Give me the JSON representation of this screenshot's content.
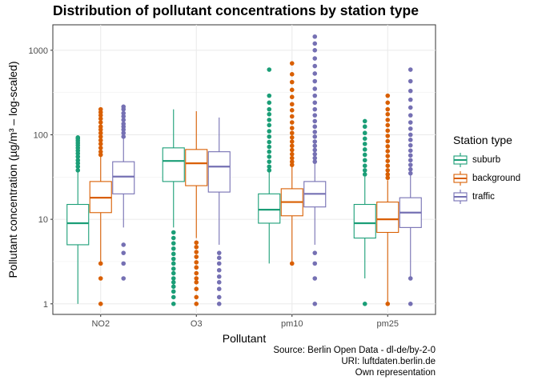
{
  "chart_data": {
    "type": "boxplot",
    "title": "Distribution of pollutant concentrations by station type",
    "xlabel": "Pollutant",
    "ylabel": "Pollutant concentration (µg/m³ – log-scaled)",
    "y_scale": "log10",
    "ylim": [
      0.75,
      2000
    ],
    "y_ticks": [
      1,
      10,
      100,
      1000
    ],
    "y_tick_labels": [
      "1",
      "10",
      "100",
      "1000"
    ],
    "grid": true,
    "legend_title": "Station type",
    "legend_position": "right",
    "categories": [
      "NO2",
      "O3",
      "pm10",
      "pm25"
    ],
    "series": [
      {
        "name": "suburb",
        "color": "#1b9e77",
        "boxes": [
          {
            "min": 1,
            "q1": 5,
            "median": 9,
            "q3": 15,
            "max": 37,
            "outliers_high": [
              38,
              42,
              46,
              50,
              55,
              60,
              65,
              70,
              75,
              80,
              85,
              90,
              93
            ],
            "outliers_low": []
          },
          {
            "min": 8,
            "q1": 28,
            "median": 49,
            "q3": 70,
            "max": 200,
            "outliers_high": [],
            "outliers_low": [
              1,
              1.2,
              1.4,
              1.6,
              1.8,
              2,
              2.3,
              2.6,
              3,
              3.4,
              3.9,
              4.5,
              5.2,
              6,
              7
            ]
          },
          {
            "min": 3,
            "q1": 9,
            "median": 13,
            "q3": 20,
            "max": 36,
            "outliers_high": [
              38,
              42,
              48,
              55,
              63,
              72,
              82,
              95,
              110,
              130,
              150,
              175,
              200,
              240,
              290,
              590
            ],
            "outliers_low": []
          },
          {
            "min": 2,
            "q1": 6,
            "median": 9,
            "q3": 15,
            "max": 32,
            "outliers_high": [
              34,
              38,
              43,
              50,
              58,
              67,
              78,
              90,
              105,
              125,
              145
            ],
            "outliers_low": [
              1
            ]
          }
        ]
      },
      {
        "name": "background",
        "color": "#d95f02",
        "boxes": [
          {
            "min": 3,
            "q1": 12,
            "median": 18,
            "q3": 28,
            "max": 56,
            "outliers_high": [
              58,
              63,
              70,
              78,
              86,
              95,
              105,
              115,
              125,
              140,
              155,
              170,
              185,
              200
            ],
            "outliers_low": [
              1,
              2,
              3
            ]
          },
          {
            "min": 6,
            "q1": 25,
            "median": 46,
            "q3": 67,
            "max": 190,
            "outliers_high": [],
            "outliers_low": [
              1,
              1.2,
              1.5,
              1.8,
              2,
              2.3,
              2.7,
              3.1,
              3.6,
              4.1,
              4.7,
              5.3
            ]
          },
          {
            "min": 3,
            "q1": 11,
            "median": 16,
            "q3": 23,
            "max": 42,
            "outliers_high": [
              44,
              48,
              53,
              59,
              66,
              74,
              83,
              93,
              105,
              120,
              140,
              165,
              195,
              230,
              280,
              340,
              420,
              520,
              700
            ],
            "outliers_low": [
              3
            ]
          },
          {
            "min": 1,
            "q1": 7,
            "median": 10,
            "q3": 16,
            "max": 29,
            "outliers_high": [
              31,
              34,
              38,
              43,
              49,
              56,
              64,
              73,
              84,
              97,
              112,
              130,
              150,
              175,
              200,
              240,
              290
            ],
            "outliers_low": [
              1
            ]
          }
        ]
      },
      {
        "name": "traffic",
        "color": "#7570b3",
        "boxes": [
          {
            "min": 8,
            "q1": 20,
            "median": 32,
            "q3": 48,
            "max": 90,
            "outliers_high": [
              95,
              105,
              115,
              125,
              135,
              150,
              165,
              180,
              200,
              215
            ],
            "outliers_low": [
              2,
              3,
              4,
              5
            ]
          },
          {
            "min": 5,
            "q1": 21,
            "median": 42,
            "q3": 63,
            "max": 160,
            "outliers_high": [],
            "outliers_low": [
              1,
              1.2,
              1.5,
              1.8,
              2.1,
              2.5,
              3,
              3.5,
              4
            ]
          },
          {
            "min": 5,
            "q1": 14,
            "median": 20,
            "q3": 28,
            "max": 46,
            "outliers_high": [
              48,
              53,
              59,
              66,
              74,
              83,
              95,
              108,
              125,
              145,
              170,
              200,
              240,
              290,
              350,
              430,
              530,
              650,
              800,
              1000,
              1200,
              1450
            ],
            "outliers_low": [
              1,
              2,
              3,
              4
            ]
          },
          {
            "min": 2,
            "q1": 8,
            "median": 12,
            "q3": 18,
            "max": 33,
            "outliers_high": [
              35,
              39,
              44,
              50,
              57,
              65,
              75,
              87,
              100,
              118,
              140,
              170,
              210,
              260,
              330,
              430,
              590
            ],
            "outliers_low": [
              1,
              2
            ]
          }
        ]
      }
    ],
    "caption": [
      "Source: Berlin Open Data - dl-de/by-2-0",
      "URI: luftdaten.berlin.de",
      "Own representation"
    ]
  }
}
